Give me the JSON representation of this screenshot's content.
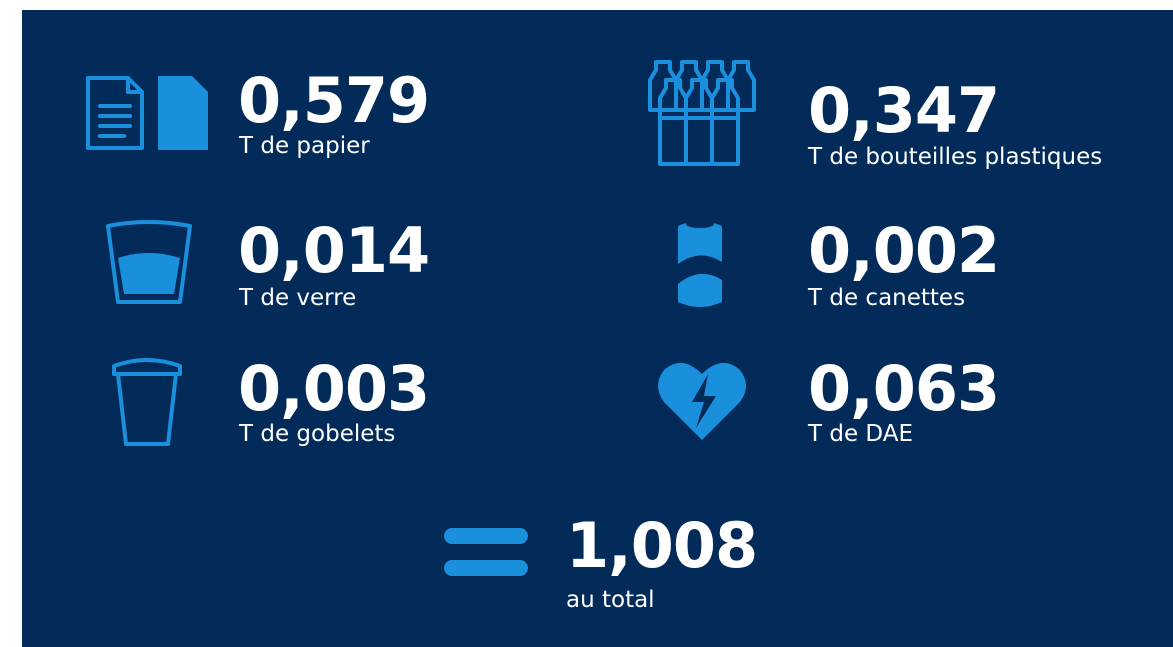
{
  "items": [
    {
      "value": "0,579",
      "label": "T de papier"
    },
    {
      "value": "0,347",
      "label": "T de bouteilles plastiques"
    },
    {
      "value": "0,014",
      "label": "T de verre"
    },
    {
      "value": "0,002",
      "label": "T de canettes"
    },
    {
      "value": "0,003",
      "label": "T de gobelets"
    },
    {
      "value": "0,063",
      "label": "T de DAE"
    }
  ],
  "total": {
    "value": "1,008",
    "label": "au total"
  }
}
